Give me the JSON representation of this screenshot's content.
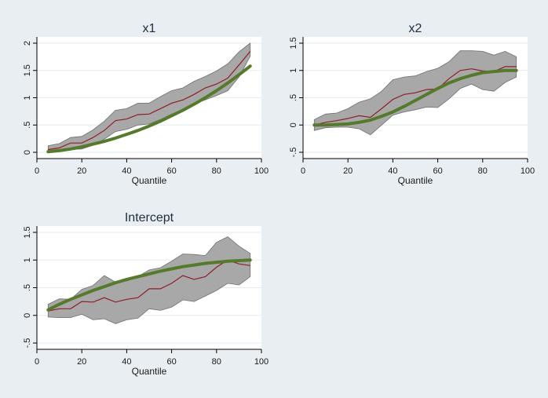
{
  "chart_data": [
    {
      "type": "line",
      "title": "x1",
      "xlabel": "Quantile",
      "ylabel": "",
      "xlim": [
        0,
        100
      ],
      "ylim": [
        0,
        2
      ],
      "xticks": [
        "0",
        "20",
        "40",
        "60",
        "80",
        "100"
      ],
      "yticks": [
        "0",
        ".5",
        "1",
        "1.5",
        "2"
      ],
      "x": [
        5,
        10,
        15,
        20,
        25,
        30,
        35,
        40,
        45,
        50,
        55,
        60,
        65,
        70,
        75,
        80,
        85,
        90,
        95
      ],
      "estimate": [
        0.05,
        0.08,
        0.17,
        0.17,
        0.27,
        0.4,
        0.58,
        0.61,
        0.69,
        0.7,
        0.8,
        0.9,
        0.96,
        1.06,
        1.18,
        1.25,
        1.36,
        1.6,
        1.85
      ],
      "ci_upper": [
        0.12,
        0.16,
        0.27,
        0.29,
        0.41,
        0.57,
        0.77,
        0.8,
        0.9,
        0.9,
        1.02,
        1.13,
        1.18,
        1.3,
        1.39,
        1.49,
        1.62,
        1.84,
        2.0
      ],
      "ci_lower": [
        0.0,
        0.02,
        0.05,
        0.06,
        0.13,
        0.24,
        0.38,
        0.42,
        0.5,
        0.52,
        0.6,
        0.7,
        0.76,
        0.89,
        0.96,
        1.04,
        1.13,
        1.38,
        1.76
      ],
      "true_effect": [
        0.01,
        0.03,
        0.06,
        0.1,
        0.15,
        0.2,
        0.26,
        0.33,
        0.4,
        0.48,
        0.57,
        0.67,
        0.77,
        0.88,
        1.0,
        1.13,
        1.27,
        1.42,
        1.58
      ],
      "colors": {
        "band": "#a8a8a8",
        "band_edge": "#6f6f6f",
        "estimate": "#8e1e2b",
        "true": "#567a2c"
      }
    },
    {
      "type": "line",
      "title": "x2",
      "xlabel": "Quantile",
      "ylabel": "",
      "xlim": [
        0,
        100
      ],
      "ylim": [
        -0.5,
        1.5
      ],
      "xticks": [
        "0",
        "20",
        "40",
        "60",
        "80",
        "100"
      ],
      "yticks": [
        "-.5",
        "0",
        ".5",
        "1",
        "1.5"
      ],
      "x": [
        5,
        10,
        15,
        20,
        25,
        30,
        35,
        40,
        45,
        50,
        55,
        60,
        65,
        70,
        75,
        80,
        85,
        90,
        95
      ],
      "estimate": [
        0.0,
        0.05,
        0.08,
        0.12,
        0.17,
        0.14,
        0.3,
        0.47,
        0.56,
        0.59,
        0.65,
        0.66,
        0.85,
        1.0,
        1.03,
        0.99,
        0.98,
        1.07,
        1.07
      ],
      "ci_upper": [
        0.1,
        0.2,
        0.22,
        0.3,
        0.42,
        0.48,
        0.62,
        0.83,
        0.88,
        0.9,
        0.98,
        1.04,
        1.16,
        1.36,
        1.36,
        1.35,
        1.28,
        1.35,
        1.25
      ],
      "ci_lower": [
        -0.1,
        -0.05,
        -0.04,
        -0.04,
        -0.07,
        -0.18,
        0.0,
        0.18,
        0.24,
        0.28,
        0.33,
        0.32,
        0.48,
        0.67,
        0.75,
        0.65,
        0.62,
        0.78,
        0.88
      ],
      "true_effect": [
        0.0,
        0.0,
        0.01,
        0.02,
        0.05,
        0.09,
        0.16,
        0.24,
        0.34,
        0.45,
        0.56,
        0.67,
        0.77,
        0.85,
        0.91,
        0.96,
        0.98,
        1.0,
        1.0
      ],
      "colors": {
        "band": "#a8a8a8",
        "band_edge": "#6f6f6f",
        "estimate": "#8e1e2b",
        "true": "#567a2c"
      }
    },
    {
      "type": "line",
      "title": "Intercept",
      "xlabel": "Quantile",
      "ylabel": "",
      "xlim": [
        0,
        100
      ],
      "ylim": [
        -0.5,
        1.5
      ],
      "xticks": [
        "0",
        "20",
        "40",
        "60",
        "80",
        "100"
      ],
      "yticks": [
        "-.5",
        "0",
        ".5",
        "1",
        "1.5"
      ],
      "x": [
        5,
        10,
        15,
        20,
        25,
        30,
        35,
        40,
        45,
        50,
        55,
        60,
        65,
        70,
        75,
        80,
        85,
        90,
        95
      ],
      "estimate": [
        0.08,
        0.12,
        0.12,
        0.25,
        0.24,
        0.32,
        0.24,
        0.29,
        0.32,
        0.48,
        0.48,
        0.58,
        0.72,
        0.65,
        0.7,
        0.87,
        1.0,
        0.93,
        0.9
      ],
      "ci_upper": [
        0.2,
        0.3,
        0.29,
        0.47,
        0.54,
        0.72,
        0.6,
        0.62,
        0.7,
        0.82,
        0.86,
        0.98,
        1.11,
        1.1,
        1.08,
        1.32,
        1.42,
        1.25,
        1.12
      ],
      "ci_lower": [
        -0.03,
        -0.04,
        -0.04,
        0.02,
        -0.08,
        -0.06,
        -0.15,
        -0.08,
        -0.05,
        0.12,
        0.09,
        0.15,
        0.28,
        0.25,
        0.35,
        0.45,
        0.58,
        0.55,
        0.7
      ],
      "true_effect": [
        0.1,
        0.2,
        0.29,
        0.37,
        0.45,
        0.52,
        0.59,
        0.65,
        0.7,
        0.75,
        0.8,
        0.84,
        0.88,
        0.91,
        0.94,
        0.96,
        0.98,
        0.99,
        1.0
      ],
      "colors": {
        "band": "#a8a8a8",
        "band_edge": "#6f6f6f",
        "estimate": "#8e1e2b",
        "true": "#567a2c"
      }
    }
  ]
}
